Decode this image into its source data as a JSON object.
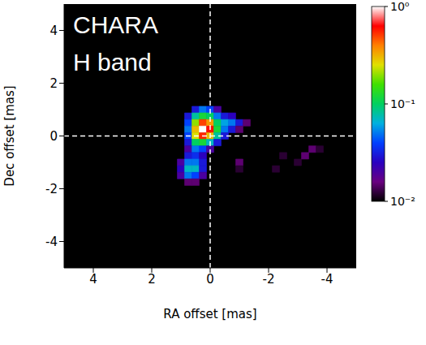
{
  "chart_data": {
    "type": "heatmap",
    "annotation": [
      "CHARA",
      "H band"
    ],
    "x_label": "RA offset [mas]",
    "y_label": "Dec offset [mas]",
    "xlim": [
      5,
      -5
    ],
    "xticks": [
      4,
      2,
      0,
      -2,
      -4
    ],
    "ylim": [
      -5,
      5
    ],
    "yticks": [
      -4,
      -2,
      0,
      2,
      4
    ],
    "reference_lines": {
      "x": [
        0
      ],
      "y": [
        0
      ]
    },
    "cell_size": 0.25,
    "cells": [
      [
        0.5,
        1.0,
        0.03
      ],
      [
        0.25,
        1.0,
        0.05
      ],
      [
        0.0,
        1.0,
        0.04
      ],
      [
        -0.25,
        1.0,
        0.02
      ],
      [
        0.75,
        0.75,
        0.03
      ],
      [
        0.5,
        0.75,
        0.08
      ],
      [
        0.25,
        0.75,
        0.12
      ],
      [
        0.0,
        0.75,
        0.1
      ],
      [
        -0.25,
        0.75,
        0.05
      ],
      [
        -0.5,
        0.75,
        0.03
      ],
      [
        -0.75,
        0.75,
        0.025
      ],
      [
        0.75,
        0.5,
        0.04
      ],
      [
        0.5,
        0.5,
        0.2
      ],
      [
        0.25,
        0.5,
        0.5
      ],
      [
        0.0,
        0.5,
        0.35
      ],
      [
        -0.25,
        0.5,
        0.1
      ],
      [
        -0.5,
        0.5,
        0.06
      ],
      [
        -0.75,
        0.5,
        0.05
      ],
      [
        -1.0,
        0.5,
        0.03
      ],
      [
        -1.25,
        0.5,
        0.015
      ],
      [
        0.75,
        0.25,
        0.05
      ],
      [
        0.5,
        0.25,
        0.3
      ],
      [
        0.25,
        0.25,
        1.0
      ],
      [
        0.0,
        0.25,
        0.6
      ],
      [
        -0.25,
        0.25,
        0.12
      ],
      [
        -0.5,
        0.25,
        0.05
      ],
      [
        -0.75,
        0.25,
        0.03
      ],
      [
        -1.0,
        0.25,
        0.015
      ],
      [
        0.75,
        0.0,
        0.04
      ],
      [
        0.5,
        0.0,
        0.25
      ],
      [
        0.25,
        0.0,
        0.55
      ],
      [
        0.0,
        0.0,
        0.3
      ],
      [
        -0.25,
        0.0,
        0.08
      ],
      [
        -0.5,
        0.0,
        0.03
      ],
      [
        0.75,
        -0.25,
        0.03
      ],
      [
        0.5,
        -0.25,
        0.1
      ],
      [
        0.25,
        -0.25,
        0.12
      ],
      [
        0.0,
        -0.25,
        0.07
      ],
      [
        -0.25,
        -0.25,
        0.03
      ],
      [
        0.75,
        -0.5,
        0.02
      ],
      [
        0.5,
        -0.5,
        0.05
      ],
      [
        0.25,
        -0.5,
        0.04
      ],
      [
        0.0,
        -0.5,
        0.02
      ],
      [
        0.75,
        -0.75,
        0.03
      ],
      [
        0.5,
        -0.75,
        0.035
      ],
      [
        0.25,
        -0.75,
        0.025
      ],
      [
        1.0,
        -1.0,
        0.02
      ],
      [
        0.75,
        -1.0,
        0.05
      ],
      [
        0.5,
        -1.0,
        0.05
      ],
      [
        0.25,
        -1.0,
        0.03
      ],
      [
        1.0,
        -1.25,
        0.025
      ],
      [
        0.75,
        -1.25,
        0.07
      ],
      [
        0.5,
        -1.25,
        0.07
      ],
      [
        0.25,
        -1.25,
        0.03
      ],
      [
        1.0,
        -1.5,
        0.02
      ],
      [
        0.75,
        -1.5,
        0.05
      ],
      [
        0.5,
        -1.5,
        0.04
      ],
      [
        0.25,
        -1.5,
        0.02
      ],
      [
        0.75,
        -1.75,
        0.015
      ],
      [
        0.5,
        -1.75,
        0.015
      ],
      [
        -1.0,
        -1.0,
        0.015
      ],
      [
        -1.0,
        -1.25,
        0.012
      ],
      [
        -2.25,
        -1.25,
        0.012
      ],
      [
        -2.5,
        -0.75,
        0.012
      ],
      [
        -3.0,
        -1.0,
        0.012
      ],
      [
        -3.25,
        -0.75,
        0.015
      ],
      [
        -3.5,
        -0.5,
        0.015
      ],
      [
        -3.75,
        -0.5,
        0.012
      ]
    ],
    "colorbar": {
      "log": true,
      "range": [
        0.01,
        1
      ],
      "ticks": [
        {
          "value": 0.01,
          "label": "10⁻²"
        },
        {
          "value": 0.1,
          "label": "10⁻¹"
        },
        {
          "value": 1,
          "label": "10⁰"
        }
      ]
    }
  }
}
